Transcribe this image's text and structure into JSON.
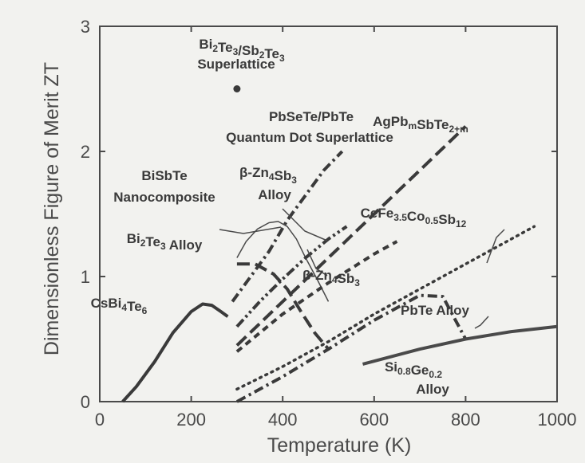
{
  "chart_data": {
    "type": "line",
    "title": "",
    "xlabel": "Temperature (K)",
    "ylabel": "Dimensionless Figure of Merit ZT",
    "xlim": [
      0,
      1000
    ],
    "ylim": [
      0,
      3
    ],
    "xticks": [
      0,
      200,
      400,
      600,
      800,
      1000
    ],
    "xtick_labels": [
      "0",
      "200",
      "400",
      "600",
      "800",
      "1000"
    ],
    "yticks": [
      0,
      1,
      2,
      3
    ],
    "ytick_labels": [
      "0",
      "1",
      "2",
      "3"
    ],
    "grid": false,
    "legend": "none",
    "series": [
      {
        "name": "CsBi4Te6",
        "style": "solid",
        "color": "#3a3a3a",
        "x": [
          50,
          80,
          120,
          160,
          200,
          225,
          245,
          265,
          280
        ],
        "y": [
          0.0,
          0.12,
          0.32,
          0.55,
          0.72,
          0.78,
          0.77,
          0.72,
          0.68
        ]
      },
      {
        "name": "BiSbTe Nanocomposite",
        "style": "thin",
        "color": "#4a4a4a",
        "x": [
          300,
          320,
          345,
          370,
          390,
          410,
          430,
          450,
          475,
          500
        ],
        "y": [
          1.15,
          1.28,
          1.38,
          1.43,
          1.44,
          1.4,
          1.3,
          1.15,
          0.98,
          0.8
        ]
      },
      {
        "name": "Bi2Te3 Alloy",
        "style": "long-dash",
        "color": "#3a3a3a",
        "x": [
          300,
          340,
          380,
          410,
          440,
          470,
          500
        ],
        "y": [
          1.1,
          1.1,
          1.02,
          0.9,
          0.72,
          0.55,
          0.42
        ]
      },
      {
        "name": "PbSeTe/PbTe Quantum Dot Superlattice",
        "style": "dash-dot",
        "color": "#3a3a3a",
        "x": [
          290,
          330,
          370,
          410,
          450,
          490,
          530
        ],
        "y": [
          0.8,
          1.0,
          1.2,
          1.45,
          1.65,
          1.85,
          2.0
        ]
      },
      {
        "name": "β-Zn4Sb3 Alloy",
        "style": "dash-dot-dot",
        "color": "#3a3a3a",
        "x": [
          300,
          350,
          400,
          450,
          500,
          540
        ],
        "y": [
          0.6,
          0.8,
          0.98,
          1.15,
          1.3,
          1.4
        ]
      },
      {
        "name": "AgPbmSbTe2+m",
        "style": "long-dash",
        "color": "#3a3a3a",
        "x": [
          300,
          400,
          500,
          600,
          700,
          800
        ],
        "y": [
          0.45,
          0.8,
          1.15,
          1.5,
          1.85,
          2.2
        ]
      },
      {
        "name": "β-Zn4Sb3",
        "style": "dash",
        "color": "#3a3a3a",
        "x": [
          300,
          400,
          500,
          600,
          650
        ],
        "y": [
          0.4,
          0.7,
          0.95,
          1.18,
          1.28
        ]
      },
      {
        "name": "CeFe3.5Co0.5Sb12",
        "style": "dot",
        "color": "#3a3a3a",
        "x": [
          300,
          400,
          500,
          600,
          700,
          800,
          900,
          950
        ],
        "y": [
          0.1,
          0.28,
          0.48,
          0.7,
          0.9,
          1.1,
          1.3,
          1.4
        ]
      },
      {
        "name": "PbTe Alloy",
        "style": "dash-dot",
        "color": "#3a3a3a",
        "x": [
          300,
          400,
          500,
          600,
          700,
          750,
          800
        ],
        "y": [
          0.0,
          0.2,
          0.42,
          0.65,
          0.85,
          0.84,
          0.5
        ]
      },
      {
        "name": "Si0.8Ge0.2 Alloy",
        "style": "solid",
        "color": "#4a4a4a",
        "x": [
          575,
          700,
          800,
          900,
          1000
        ],
        "y": [
          0.3,
          0.42,
          0.5,
          0.56,
          0.6
        ]
      }
    ],
    "points": [
      {
        "name": "Bi2Te3/Sb2Te3 Superlattice",
        "x": 300,
        "y": 2.5
      }
    ],
    "annotations": [
      {
        "text": "Bi2Te3/Sb2Te3",
        "line2": "Superlattice"
      },
      {
        "text": "PbSeTe/PbTe",
        "line2": "Quantum Dot Superlattice"
      },
      {
        "text": "AgPbmSbTe2+m"
      },
      {
        "text": "β-Zn4Sb3",
        "line2": "Alloy"
      },
      {
        "text": "BiSbTe",
        "line2": "Nanocomposite"
      },
      {
        "text": "CeFe3.5Co0.5Sb12"
      },
      {
        "text": "Bi2Te3 Alloy"
      },
      {
        "text": "β-Zn4Sb3"
      },
      {
        "text": "CsBi4Te6"
      },
      {
        "text": "PbTe Alloy"
      },
      {
        "text": "Si0.8Ge0.2",
        "line2": "Alloy"
      }
    ]
  }
}
